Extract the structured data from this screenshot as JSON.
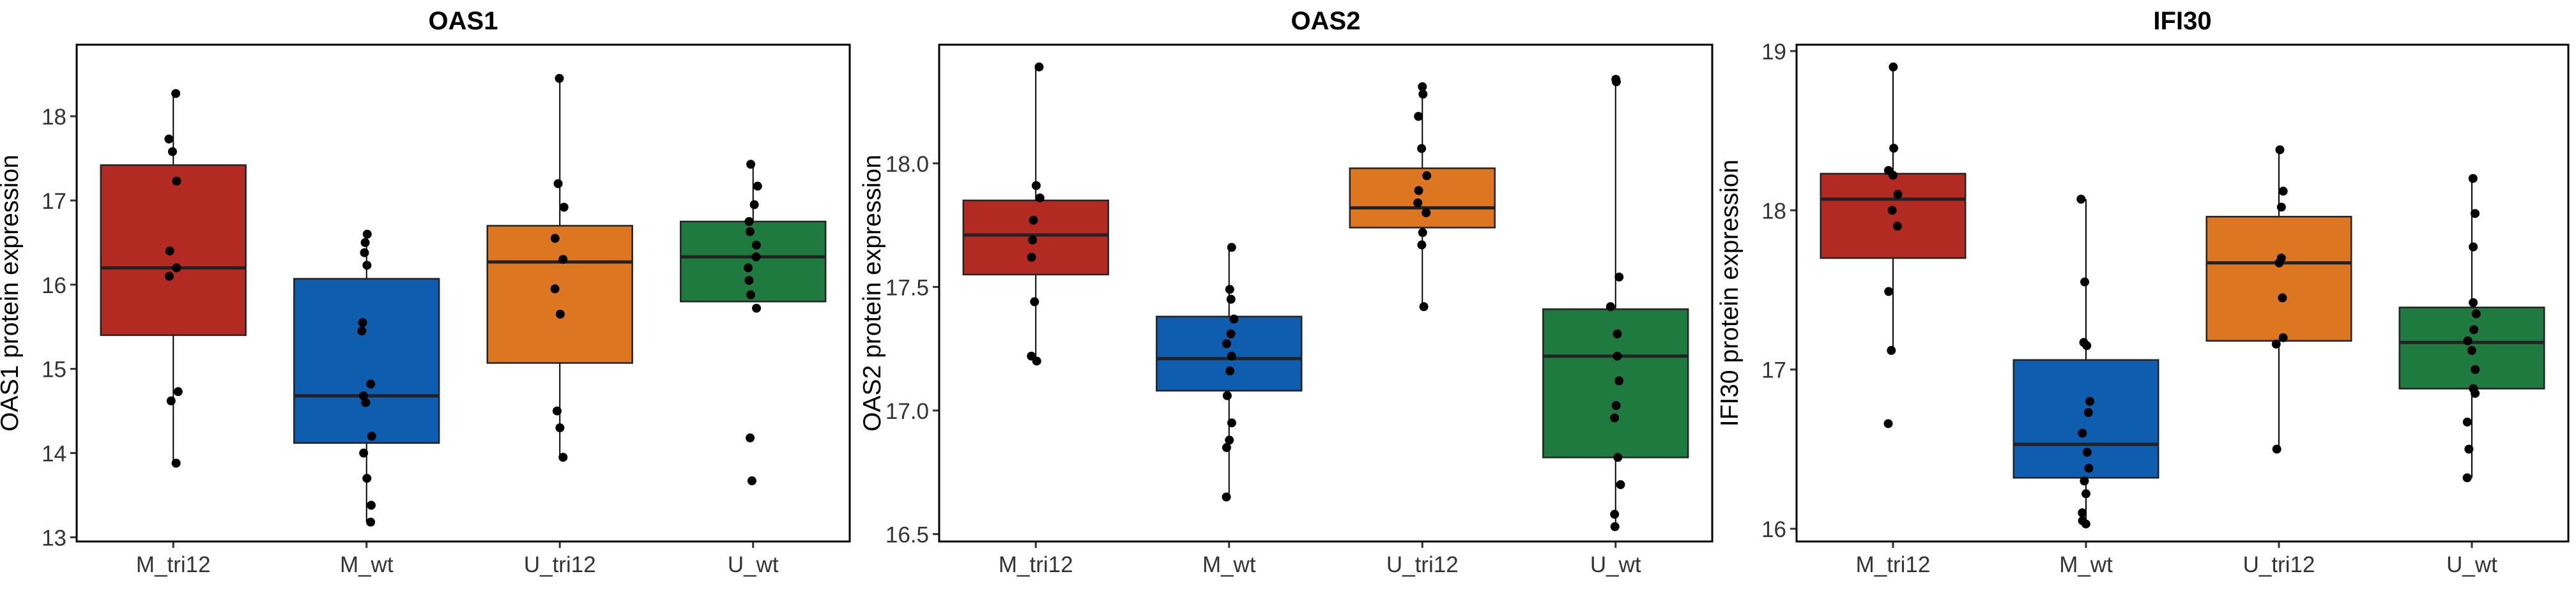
{
  "chart_data": [
    {
      "type": "box",
      "title": "OAS1",
      "xlabel": "",
      "ylabel": "OAS1 protein expression",
      "ylim": [
        12.95,
        18.85
      ],
      "yticks": [
        13,
        14,
        15,
        16,
        17,
        18
      ],
      "ytick_labels": [
        "13",
        "14",
        "15",
        "16",
        "17",
        "18"
      ],
      "categories": [
        "M_tri12",
        "M_wt",
        "U_tri12",
        "U_wt"
      ],
      "colors": [
        "#B22A22",
        "#0E5DAE",
        "#DD7620",
        "#1E7A3F"
      ],
      "grid": false,
      "series": [
        {
          "q1": 15.4,
          "median": 16.2,
          "q3": 17.42,
          "whisker_low": 13.88,
          "whisker_high": 18.27,
          "points": [
            18.27,
            17.73,
            17.58,
            17.23,
            16.4,
            16.2,
            16.1,
            14.73,
            14.62,
            13.88
          ]
        },
        {
          "q1": 14.12,
          "median": 14.68,
          "q3": 16.07,
          "whisker_low": 13.18,
          "whisker_high": 16.6,
          "points": [
            16.6,
            16.5,
            16.38,
            16.23,
            15.55,
            15.45,
            14.82,
            14.68,
            14.6,
            14.2,
            14.0,
            13.7,
            13.38,
            13.18
          ]
        },
        {
          "q1": 15.07,
          "median": 16.27,
          "q3": 16.7,
          "whisker_low": 13.95,
          "whisker_high": 18.45,
          "points": [
            18.45,
            17.2,
            16.92,
            16.55,
            16.3,
            15.95,
            15.65,
            14.5,
            14.3,
            13.95
          ]
        },
        {
          "q1": 15.8,
          "median": 16.33,
          "q3": 16.75,
          "whisker_low": 15.8,
          "whisker_high": 17.43,
          "points": [
            17.43,
            17.17,
            16.95,
            16.75,
            16.63,
            16.47,
            16.33,
            16.2,
            16.05,
            15.88,
            15.72,
            14.18,
            13.67
          ]
        }
      ]
    },
    {
      "type": "box",
      "title": "OAS2",
      "xlabel": "",
      "ylabel": "OAS2 protein expression",
      "ylim": [
        16.47,
        18.48
      ],
      "yticks": [
        16.5,
        17.0,
        17.5,
        18.0
      ],
      "ytick_labels": [
        "16.5",
        "17.0",
        "17.5",
        "18.0"
      ],
      "categories": [
        "M_tri12",
        "M_wt",
        "U_tri12",
        "U_wt"
      ],
      "colors": [
        "#B22A22",
        "#0E5DAE",
        "#DD7620",
        "#1E7A3F"
      ],
      "grid": false,
      "series": [
        {
          "q1": 17.55,
          "median": 17.71,
          "q3": 17.85,
          "whisker_low": 17.2,
          "whisker_high": 18.39,
          "points": [
            18.39,
            17.91,
            17.86,
            17.77,
            17.69,
            17.62,
            17.44,
            17.22,
            17.2
          ]
        },
        {
          "q1": 17.08,
          "median": 17.21,
          "q3": 17.38,
          "whisker_low": 16.65,
          "whisker_high": 17.66,
          "points": [
            17.66,
            17.49,
            17.45,
            17.37,
            17.31,
            17.27,
            17.22,
            17.16,
            17.06,
            16.95,
            16.88,
            16.85,
            16.65
          ]
        },
        {
          "q1": 17.74,
          "median": 17.82,
          "q3": 17.98,
          "whisker_low": 17.42,
          "whisker_high": 18.31,
          "points": [
            18.31,
            18.28,
            18.19,
            18.06,
            17.95,
            17.89,
            17.84,
            17.8,
            17.72,
            17.67,
            17.42
          ]
        },
        {
          "q1": 16.81,
          "median": 17.22,
          "q3": 17.41,
          "whisker_low": 16.53,
          "whisker_high": 18.34,
          "points": [
            18.34,
            18.33,
            17.54,
            17.42,
            17.31,
            17.22,
            17.12,
            17.02,
            16.97,
            16.81,
            16.7,
            16.58,
            16.53
          ]
        }
      ]
    },
    {
      "type": "box",
      "title": "IFI30",
      "xlabel": "",
      "ylabel": "IFI30 protein expression",
      "ylim": [
        15.92,
        19.04
      ],
      "yticks": [
        16,
        17,
        18,
        19
      ],
      "ytick_labels": [
        "16",
        "17",
        "18",
        "19"
      ],
      "categories": [
        "M_tri12",
        "M_wt",
        "U_tri12",
        "U_wt"
      ],
      "colors": [
        "#B22A22",
        "#0E5DAE",
        "#DD7620",
        "#1E7A3F"
      ],
      "grid": false,
      "series": [
        {
          "q1": 17.7,
          "median": 18.07,
          "q3": 18.23,
          "whisker_low": 17.12,
          "whisker_high": 18.9,
          "points": [
            18.9,
            18.39,
            18.25,
            18.22,
            18.1,
            18.0,
            17.9,
            17.49,
            17.12,
            16.66
          ]
        },
        {
          "q1": 16.32,
          "median": 16.53,
          "q3": 17.06,
          "whisker_low": 16.03,
          "whisker_high": 18.07,
          "points": [
            18.07,
            17.55,
            17.17,
            17.15,
            16.8,
            16.73,
            16.6,
            16.48,
            16.38,
            16.3,
            16.22,
            16.1,
            16.05,
            16.03
          ]
        },
        {
          "q1": 17.18,
          "median": 17.67,
          "q3": 17.96,
          "whisker_low": 16.5,
          "whisker_high": 18.38,
          "points": [
            18.38,
            18.12,
            18.02,
            17.7,
            17.67,
            17.45,
            17.2,
            17.16,
            16.5
          ]
        },
        {
          "q1": 16.88,
          "median": 17.17,
          "q3": 17.39,
          "whisker_low": 16.32,
          "whisker_high": 18.2,
          "points": [
            18.2,
            17.98,
            17.77,
            17.42,
            17.35,
            17.25,
            17.18,
            17.12,
            17.0,
            16.88,
            16.85,
            16.67,
            16.5,
            16.32
          ]
        }
      ]
    }
  ]
}
